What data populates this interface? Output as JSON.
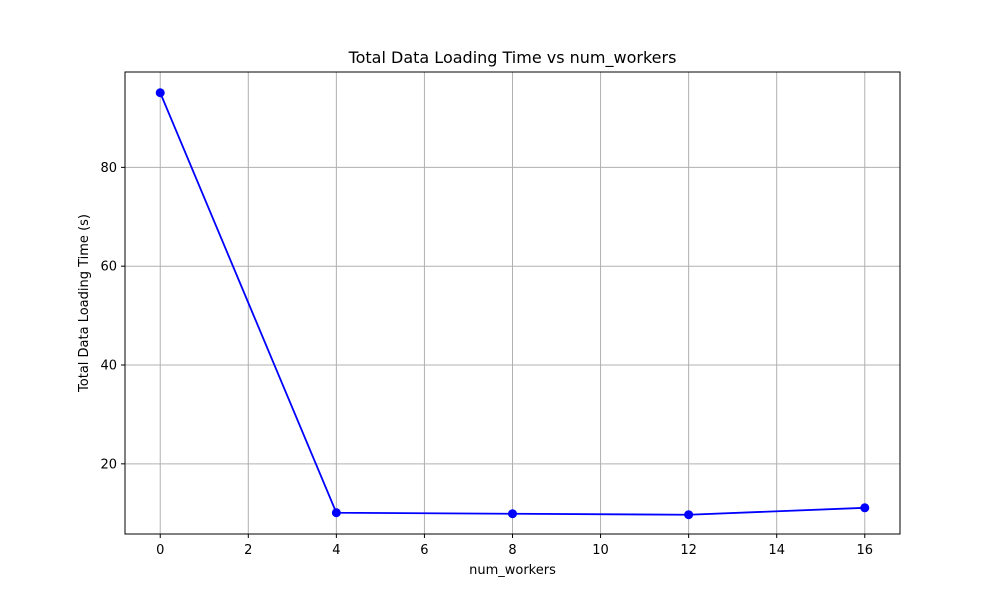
{
  "chart_data": {
    "type": "line",
    "title": "Total Data Loading Time vs num_workers",
    "xlabel": "num_workers",
    "ylabel": "Total Data Loading Time (s)",
    "x": [
      0,
      4,
      8,
      12,
      16
    ],
    "series": [
      {
        "values": [
          95.1,
          10.1,
          9.9,
          9.7,
          11.1
        ],
        "color": "#0000ff",
        "marker": "circle"
      }
    ],
    "xlim": [
      -0.8,
      16.8
    ],
    "ylim": [
      5.8,
      99.3
    ],
    "xticks": [
      "0",
      "2",
      "4",
      "6",
      "8",
      "10",
      "12",
      "14",
      "16"
    ],
    "yticks": [
      "20",
      "40",
      "60",
      "80"
    ],
    "grid": true
  }
}
